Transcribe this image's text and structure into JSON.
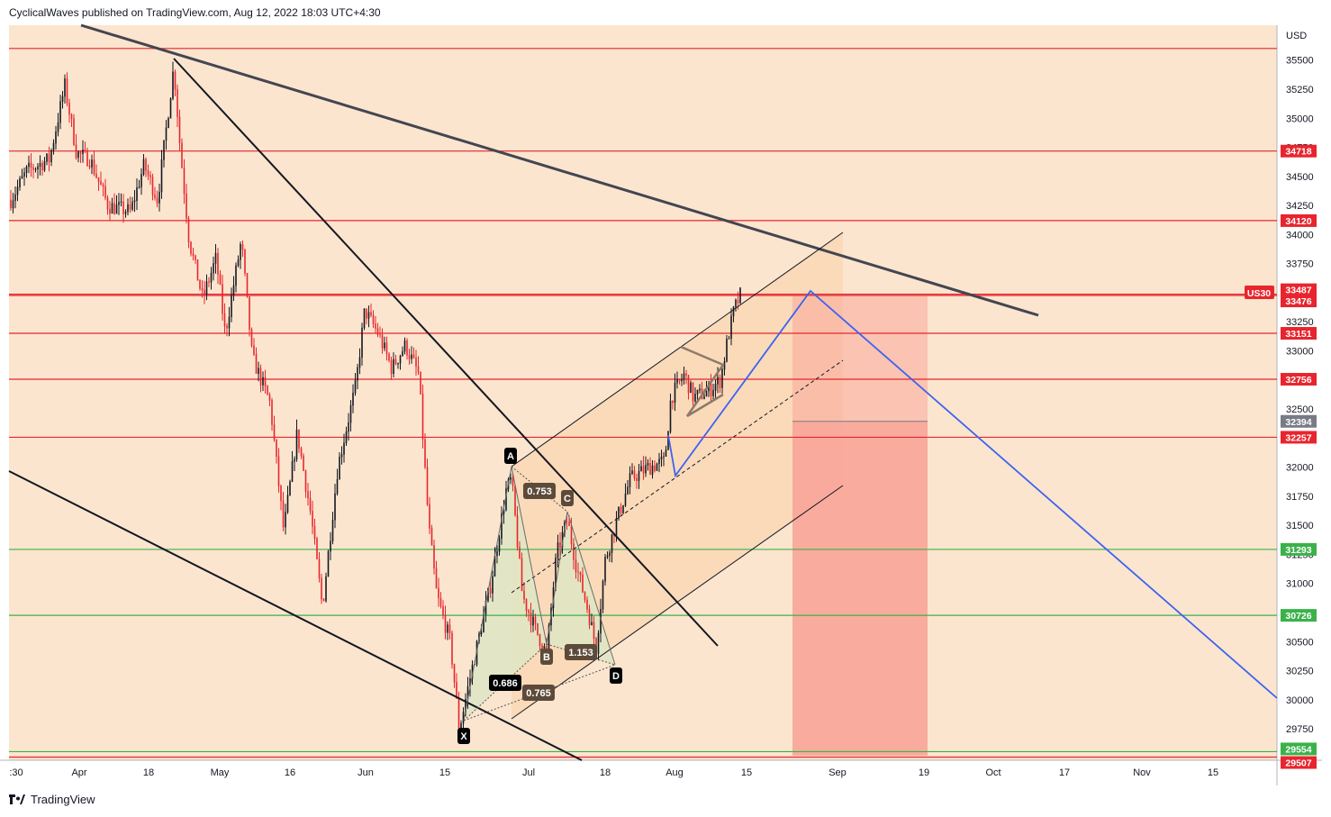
{
  "header": {
    "publisher_text": "CyclicalWaves published on TradingView.com, Aug 12, 2022 18:03 UTC+4:30"
  },
  "footer": {
    "brand": "TradingView",
    "logo_icon": "tradingview-logo-icon"
  },
  "colors": {
    "background": "#fbe5ce",
    "candle_up": "#131722",
    "candle_down": "#e8252e",
    "resistance_line": "#e8252e",
    "support_line": "#3bb14a",
    "trendline": "#131722",
    "projection_line": "#3d63f0",
    "short_zone": "#f9a89a",
    "channel_fill": "#f9d2a8",
    "pattern_fill": "#dde6c4"
  },
  "chart_data": {
    "type": "candlestick",
    "symbol": "US30",
    "currency": "USD",
    "x_axis": {
      "tick_labels": [
        ":30",
        "Apr",
        "18",
        "May",
        "16",
        "Jun",
        "15",
        "Jul",
        "18",
        "Aug",
        "15",
        "Sep",
        "19",
        "Oct",
        "17",
        "Nov",
        "15"
      ]
    },
    "y_axis": {
      "range": [
        29480,
        35800
      ],
      "tick_labels": [
        "35500",
        "35250",
        "35000",
        "34750",
        "34500",
        "34250",
        "34000",
        "33750",
        "33500",
        "33250",
        "33000",
        "32750",
        "32500",
        "32250",
        "32000",
        "31750",
        "31500",
        "31250",
        "31000",
        "30750",
        "30500",
        "30250",
        "30000",
        "29750"
      ]
    },
    "price_levels": [
      {
        "price": 35600,
        "label": "",
        "color": "red"
      },
      {
        "price": 34718,
        "label": "34718",
        "color": "red"
      },
      {
        "price": 34120,
        "label": "34120",
        "color": "red"
      },
      {
        "price": 33487,
        "label": "33487",
        "color": "red"
      },
      {
        "price": 33476,
        "label": "33476",
        "color": "red"
      },
      {
        "price": 33151,
        "label": "33151",
        "color": "red"
      },
      {
        "price": 32756,
        "label": "32756",
        "color": "red"
      },
      {
        "price": 32394,
        "label": "32394",
        "color": "gray"
      },
      {
        "price": 32257,
        "label": "32257",
        "color": "red"
      },
      {
        "price": 31293,
        "label": "31293",
        "color": "green"
      },
      {
        "price": 30726,
        "label": "30726",
        "color": "green"
      },
      {
        "price": 29554,
        "label": "29554",
        "color": "green"
      },
      {
        "price": 29507,
        "label": "29507",
        "color": "red"
      }
    ],
    "symbol_tag": {
      "text": "US30",
      "price": 33500
    },
    "harmonic_pattern": {
      "points": [
        {
          "name": "X",
          "price": 29720
        },
        {
          "name": "A",
          "price": 31930
        },
        {
          "name": "B",
          "price": 30380
        },
        {
          "name": "C",
          "price": 31560
        },
        {
          "name": "D",
          "price": 30200
        }
      ],
      "ratios": [
        "0.753",
        "1.153",
        "0.686",
        "0.765"
      ]
    },
    "annotations": {
      "projected_peak_price": 33480,
      "short_zone_top": 33470,
      "short_zone_bottom": 29520,
      "short_zone_mid_line": 32394
    }
  }
}
